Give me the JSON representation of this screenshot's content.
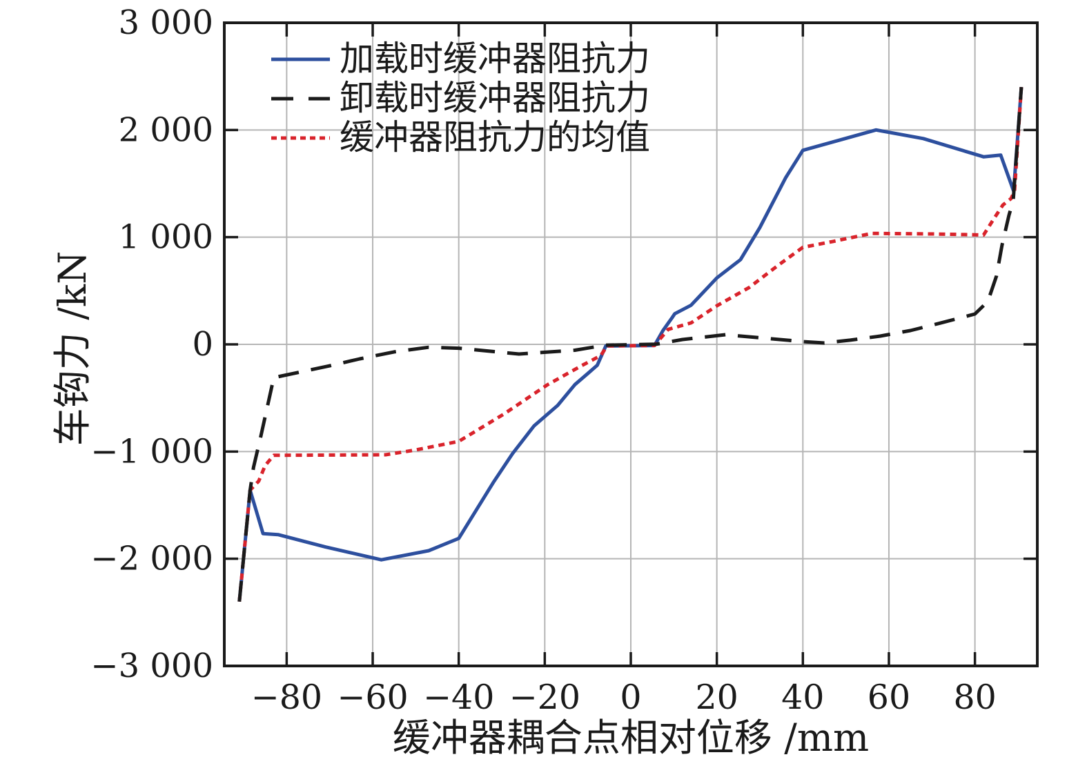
{
  "colors": {
    "loading_blue": "#2d4f9e",
    "unloading_black": "#1a1a1a",
    "mean_red": "#d9232b",
    "grid_gray": "#b5b5b5",
    "frame_black": "#1a1a1a",
    "background": "#ffffff"
  },
  "legend": {
    "items": [
      {
        "label": "加载时缓冲器阻抗力",
        "color": "#2d4f9e",
        "style": "solid"
      },
      {
        "label": "卸载时缓冲器阻抗力",
        "color": "#1a1a1a",
        "style": "dashed"
      },
      {
        "label": "缓冲器阻抗力的均值",
        "color": "#d9232b",
        "style": "dotted"
      }
    ]
  },
  "chart_data": {
    "type": "line",
    "title": "",
    "xlabel": "缓冲器耦合点相对位移 /mm",
    "ylabel": "车钩力 /kN",
    "xlim": [
      -94.5,
      94.5
    ],
    "ylim": [
      -3000,
      3000
    ],
    "grid": true,
    "legend_position": "upper left",
    "xticks": {
      "values": [
        -80,
        -60,
        -40,
        -20,
        0,
        20,
        40,
        60,
        80
      ],
      "labels": [
        "−80",
        "−60",
        "−40",
        "−20",
        "0",
        "20",
        "40",
        "60",
        "80"
      ]
    },
    "yticks": {
      "values": [
        3000,
        2000,
        1000,
        0,
        -1000,
        -2000,
        -3000
      ],
      "labels": [
        "3 000",
        "2 000",
        "1 000",
        "0",
        "−1 000",
        "−2 000",
        "−3 000"
      ]
    },
    "series": [
      {
        "name": "加载时缓冲器阻抗力",
        "style": "solid",
        "color": "#2d4f9e",
        "points": [
          [
            -91,
            -2400
          ],
          [
            -88.5,
            -1360
          ],
          [
            -85.5,
            -1765
          ],
          [
            -82,
            -1775
          ],
          [
            -71,
            -1890
          ],
          [
            -58,
            -2010
          ],
          [
            -47,
            -1925
          ],
          [
            -40,
            -1810
          ],
          [
            -32,
            -1290
          ],
          [
            -27.5,
            -1020
          ],
          [
            -22.5,
            -760
          ],
          [
            -17,
            -570
          ],
          [
            -13,
            -375
          ],
          [
            -9.8,
            -265
          ],
          [
            -7.8,
            -195
          ],
          [
            -5.8,
            -15
          ],
          [
            5.5,
            -10
          ],
          [
            7.5,
            130
          ],
          [
            9.7,
            255
          ],
          [
            10.2,
            285
          ],
          [
            14,
            365
          ],
          [
            20,
            620
          ],
          [
            25.5,
            790
          ],
          [
            30,
            1090
          ],
          [
            36,
            1555
          ],
          [
            40,
            1810
          ],
          [
            57,
            2000
          ],
          [
            68,
            1920
          ],
          [
            82,
            1750
          ],
          [
            86,
            1765
          ],
          [
            89,
            1430
          ],
          [
            90.8,
            2400
          ]
        ]
      },
      {
        "name": "缓冲器阻抗力的均值",
        "style": "dotted",
        "color": "#d9232b",
        "points": [
          [
            -91,
            -2400
          ],
          [
            -88.5,
            -1360
          ],
          [
            -86.5,
            -1275
          ],
          [
            -85,
            -1130
          ],
          [
            -83,
            -1035
          ],
          [
            -57,
            -1030
          ],
          [
            -50,
            -985
          ],
          [
            -40,
            -905
          ],
          [
            -29.5,
            -650
          ],
          [
            -19.5,
            -380
          ],
          [
            -11.5,
            -200
          ],
          [
            -7,
            -105
          ],
          [
            -5.5,
            -15
          ],
          [
            5.5,
            -10
          ],
          [
            8.7,
            140
          ],
          [
            14,
            200
          ],
          [
            20,
            360
          ],
          [
            27.5,
            530
          ],
          [
            34.5,
            745
          ],
          [
            40,
            905
          ],
          [
            47,
            960
          ],
          [
            56,
            1035
          ],
          [
            70,
            1030
          ],
          [
            80,
            1022
          ],
          [
            82,
            1020
          ],
          [
            84.3,
            1165
          ],
          [
            86.5,
            1300
          ],
          [
            88.4,
            1360
          ],
          [
            89.2,
            1430
          ],
          [
            90.8,
            2400
          ]
        ]
      },
      {
        "name": "卸载时缓冲器阻抗力",
        "style": "dashed",
        "color": "#1a1a1a",
        "points": [
          [
            -91,
            -2400
          ],
          [
            -88.5,
            -1360
          ],
          [
            -87.7,
            -1145
          ],
          [
            -86,
            -855
          ],
          [
            -83,
            -310
          ],
          [
            -70,
            -200
          ],
          [
            -63,
            -135
          ],
          [
            -55,
            -70
          ],
          [
            -47,
            -27
          ],
          [
            -40,
            -36
          ],
          [
            -26,
            -90
          ],
          [
            -13,
            -55
          ],
          [
            -6,
            -8
          ],
          [
            6,
            2
          ],
          [
            12,
            45
          ],
          [
            22,
            90
          ],
          [
            31,
            58
          ],
          [
            40,
            26
          ],
          [
            45,
            13
          ],
          [
            51,
            39
          ],
          [
            58,
            77
          ],
          [
            65,
            129
          ],
          [
            72,
            199
          ],
          [
            80,
            283
          ],
          [
            83,
            400
          ],
          [
            85,
            637
          ],
          [
            86.3,
            926
          ],
          [
            87.9,
            1203
          ],
          [
            88.9,
            1344
          ],
          [
            90.8,
            2400
          ]
        ]
      }
    ]
  }
}
